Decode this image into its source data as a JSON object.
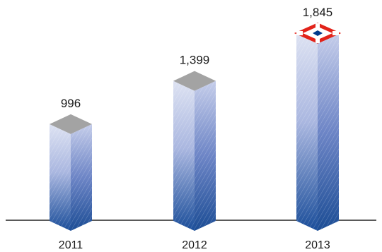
{
  "chart_data": {
    "type": "bar",
    "categories": [
      "2011",
      "2012",
      "2013"
    ],
    "values": [
      996,
      1399,
      1845
    ],
    "value_labels": [
      "996",
      "1,399",
      "1,845"
    ],
    "title": "",
    "xlabel": "",
    "ylabel": "",
    "ylim": [
      0,
      1845
    ],
    "grid": false,
    "legend": "none",
    "style": "3d-pillar",
    "logo_on_bar": "2013",
    "colors": {
      "bar_light": "#dde2f2",
      "bar_mid": "#8ea1d6",
      "bar_dark": "#1b4e9a",
      "side_top": "#c5cdea",
      "side_dark": "#1c4d95",
      "cap": "#a3a3a3",
      "baseline": "#5a5a5a",
      "logo_red": "#e2231a",
      "logo_blue": "#003a8c"
    }
  }
}
